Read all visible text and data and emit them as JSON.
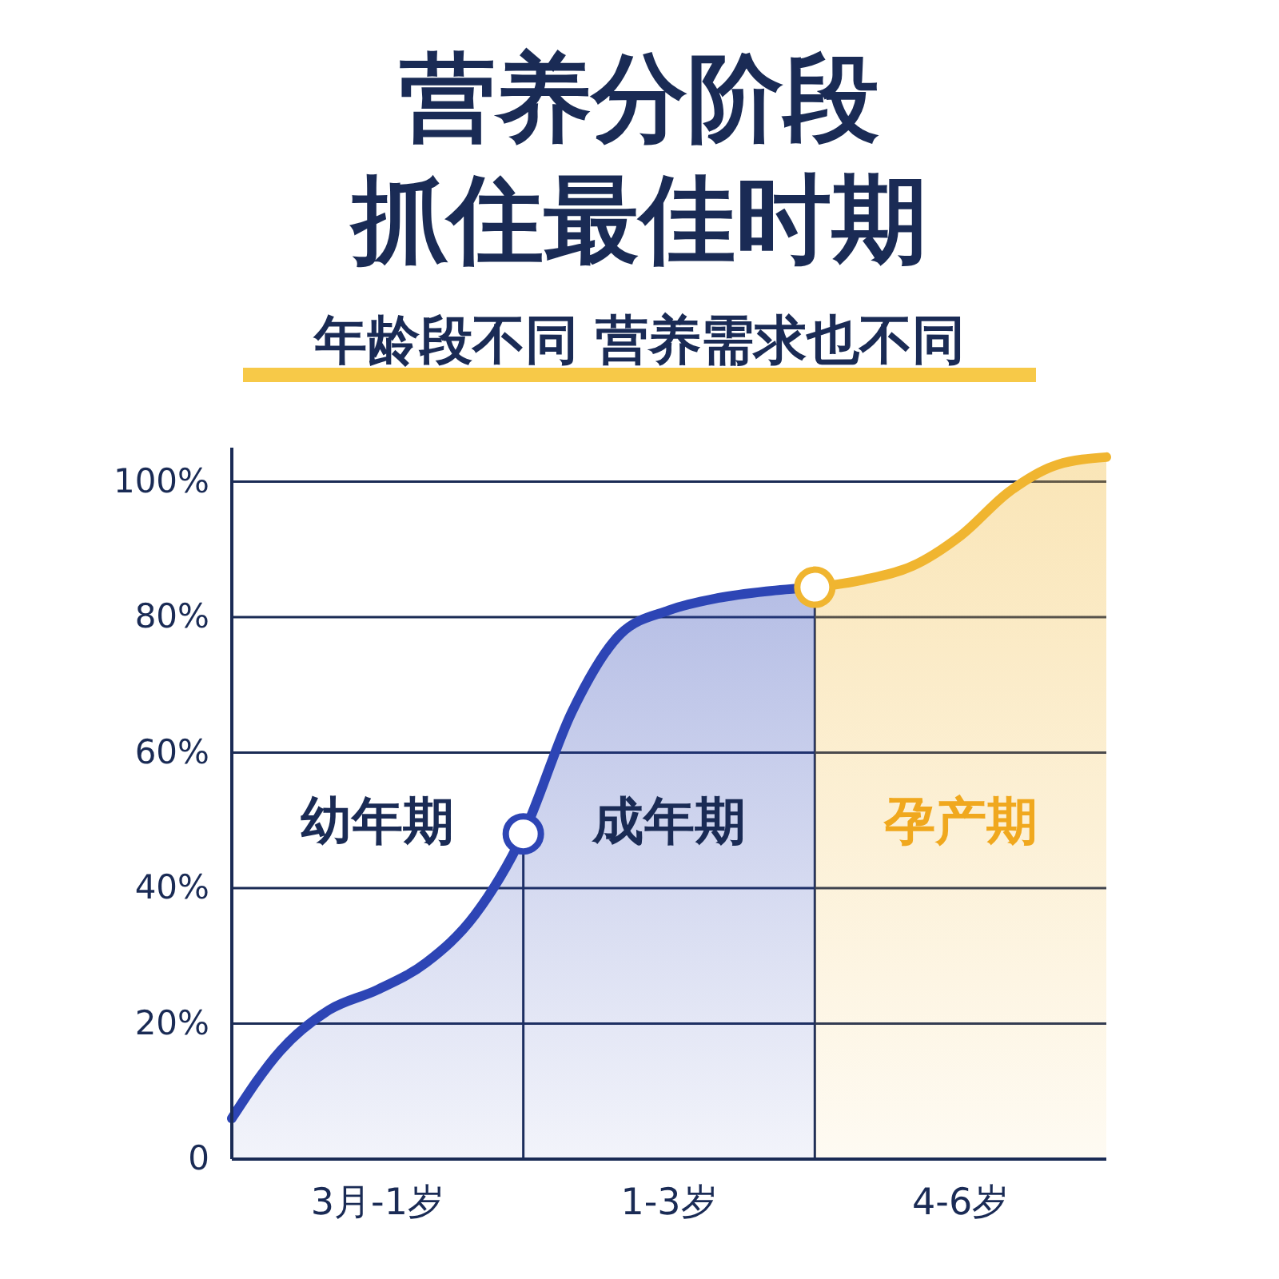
{
  "chart_data": {
    "type": "area",
    "title": "营养分阶段抓住最佳时期",
    "subtitle": "年龄段不同 营养需求也不同",
    "categories": [
      null,
      null,
      null,
      "3月-1岁",
      null,
      null,
      null,
      null,
      null,
      "1-3岁",
      null,
      null,
      null,
      null,
      null,
      "4-6岁",
      null,
      null,
      null
    ],
    "ylim": [
      0,
      105
    ],
    "yticks": [
      {
        "value": 0,
        "label": "0"
      },
      {
        "value": 20,
        "label": "20%"
      },
      {
        "value": 40,
        "label": "40%"
      },
      {
        "value": 60,
        "label": "60%"
      },
      {
        "value": 80,
        "label": "80%"
      },
      {
        "value": 100,
        "label": "100%"
      }
    ],
    "grid": "y",
    "annotations": [
      "幼年期",
      "成年期",
      "孕产期"
    ],
    "series": [
      {
        "color": "#2d45b5",
        "values": [
          6,
          16,
          22,
          25,
          29,
          36,
          48,
          66,
          77.5,
          81,
          82.8,
          83.8,
          84.4,
          null,
          null,
          null,
          null,
          null,
          null
        ]
      },
      {
        "color": "#f0b530",
        "values": [
          null,
          null,
          null,
          null,
          null,
          null,
          null,
          null,
          null,
          null,
          null,
          null,
          84.4,
          85.5,
          87.5,
          92,
          98.5,
          102.5,
          103.6
        ]
      },
      {
        "type": "scatter",
        "values": [
          null,
          null,
          null,
          null,
          null,
          null,
          48,
          null,
          null,
          null,
          null,
          null,
          84.4,
          null,
          null,
          null,
          null,
          null,
          null
        ],
        "colors": [
          null,
          null,
          null,
          null,
          null,
          null,
          "#2d45b5",
          null,
          null,
          null,
          null,
          null,
          "#f0b530",
          null,
          null,
          null,
          null,
          null,
          null
        ]
      }
    ]
  }
}
